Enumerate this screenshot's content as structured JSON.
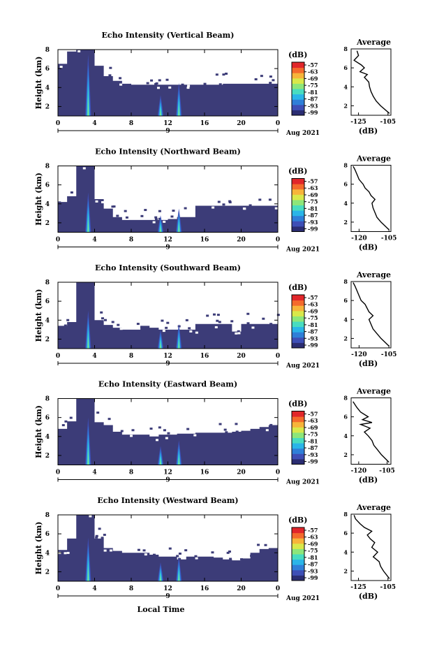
{
  "colors": {
    "background": "#3c3c78",
    "colorbar": [
      "#2b2d72",
      "#3e4fb6",
      "#2f7fd8",
      "#2ab5e8",
      "#48dcc0",
      "#8de67a",
      "#d9e84a",
      "#f7b43a",
      "#f46a2c",
      "#e1262a"
    ]
  },
  "shared": {
    "ylabel": "Height (km)",
    "avg_xlabel": "(dB)",
    "cb_unit": "(dB)",
    "cb_ticks": [
      "-57",
      "-63",
      "-69",
      "-75",
      "-81",
      "-87",
      "-93",
      "-99"
    ],
    "x_ticks": [
      "0",
      "4",
      "8",
      "12",
      "16",
      "20",
      "0"
    ],
    "day_label": "9",
    "month_label": "Aug 2021",
    "y_ticks": [
      "8",
      "6",
      "4",
      "2"
    ],
    "xlabel": "Local Time",
    "avg_title": "Average"
  },
  "chart_data": [
    {
      "type": "heatmap",
      "title": "Echo Intensity (Vertical Beam)",
      "beam": "vertical",
      "xlabel": "",
      "ylabel": "Height (km)",
      "xlim": [
        0,
        24
      ],
      "ylim": [
        1,
        8
      ],
      "echo_top_km": [
        6.5,
        7.8,
        8,
        8,
        6.3,
        5.2,
        4.7,
        4.4,
        4.3,
        4.3,
        4.3,
        4.3,
        4.3,
        4.3,
        4.3,
        4.3,
        4.3,
        4.3,
        4.4,
        4.4,
        4.4,
        4.4,
        4.4,
        4.4
      ],
      "peaks": [
        {
          "x": 3.3,
          "top": 7.5
        },
        {
          "x": 11.2,
          "top": 3.2
        },
        {
          "x": 13.2,
          "top": 4.5
        }
      ],
      "colorbar": {
        "label": "(dB)",
        "ticks": [
          -57,
          -63,
          -69,
          -75,
          -81,
          -87,
          -93,
          -99
        ]
      },
      "avg": {
        "title": "Average",
        "xlabel": "(dB)",
        "xticks": [
          -125,
          -105
        ],
        "xlim": [
          -130,
          -103
        ],
        "ylim": [
          1,
          8
        ],
        "points": [
          [
            -104,
            1.2
          ],
          [
            -110,
            2.0
          ],
          [
            -113,
            2.5
          ],
          [
            -115,
            3.0
          ],
          [
            -116.5,
            3.5
          ],
          [
            -117.5,
            4.0
          ],
          [
            -118,
            4.5
          ],
          [
            -121,
            5.0
          ],
          [
            -119,
            5.3
          ],
          [
            -124,
            5.6
          ],
          [
            -121,
            6.0
          ],
          [
            -123,
            6.3
          ],
          [
            -128,
            6.8
          ],
          [
            -125,
            7.3
          ],
          [
            -126,
            7.8
          ]
        ]
      }
    },
    {
      "type": "heatmap",
      "title": "Echo Intensity (Northward Beam)",
      "beam": "northward",
      "xlabel": "",
      "ylabel": "Height (km)",
      "xlim": [
        0,
        24
      ],
      "ylim": [
        1,
        8
      ],
      "echo_top_km": [
        4.2,
        4.8,
        8,
        8,
        4.5,
        3.5,
        2.6,
        2.3,
        2.3,
        2.3,
        2.3,
        2.3,
        2.4,
        2.6,
        2.6,
        3.8,
        3.8,
        3.8,
        3.8,
        3.8,
        3.8,
        3.8,
        3.8,
        3.8
      ],
      "peaks": [
        {
          "x": 3.3,
          "top": 5.2
        },
        {
          "x": 11.2,
          "top": 2.8
        },
        {
          "x": 13.2,
          "top": 3.5
        }
      ],
      "colorbar": {
        "label": "(dB)",
        "ticks": [
          -57,
          -63,
          -69,
          -75,
          -81,
          -87,
          -93,
          -99
        ]
      },
      "avg": {
        "title": "Average",
        "xlabel": "(dB)",
        "xticks": [
          -120,
          -105
        ],
        "xlim": [
          -124,
          -104
        ],
        "ylim": [
          1,
          8
        ],
        "points": [
          [
            -105,
            1.2
          ],
          [
            -109,
            2.0
          ],
          [
            -111,
            2.5
          ],
          [
            -112,
            3.0
          ],
          [
            -113,
            3.5
          ],
          [
            -113.5,
            4.0
          ],
          [
            -112,
            4.4
          ],
          [
            -114,
            4.8
          ],
          [
            -115,
            5.2
          ],
          [
            -117,
            5.6
          ],
          [
            -118,
            6.0
          ],
          [
            -120,
            6.5
          ],
          [
            -121,
            7.0
          ],
          [
            -122,
            7.5
          ],
          [
            -123,
            7.9
          ]
        ]
      }
    },
    {
      "type": "heatmap",
      "title": "Echo Intensity (Southward Beam)",
      "beam": "southward",
      "xlabel": "",
      "ylabel": "Height (km)",
      "xlim": [
        0,
        24
      ],
      "ylim": [
        1,
        8
      ],
      "echo_top_km": [
        3.4,
        3.8,
        8,
        8,
        4.0,
        3.5,
        3.2,
        3.0,
        3.0,
        3.4,
        3.2,
        3.0,
        3.0,
        3.0,
        3.0,
        3.6,
        3.6,
        3.6,
        3.6,
        2.8,
        3.6,
        3.6,
        3.6,
        3.6
      ],
      "peaks": [
        {
          "x": 3.3,
          "top": 5.0
        },
        {
          "x": 11.2,
          "top": 3.0
        },
        {
          "x": 13.2,
          "top": 3.6
        }
      ],
      "colorbar": {
        "label": "(dB)",
        "ticks": [
          -57,
          -63,
          -69,
          -75,
          -81,
          -87,
          -93,
          -99
        ]
      },
      "avg": {
        "title": "Average",
        "xlabel": "(dB)",
        "xticks": [
          -120,
          -105
        ],
        "xlim": [
          -124,
          -104
        ],
        "ylim": [
          1,
          8
        ],
        "points": [
          [
            -105,
            1.2
          ],
          [
            -109,
            2.0
          ],
          [
            -111,
            2.5
          ],
          [
            -113,
            3.0
          ],
          [
            -114,
            3.5
          ],
          [
            -115,
            4.0
          ],
          [
            -113,
            4.4
          ],
          [
            -115,
            4.8
          ],
          [
            -116,
            5.2
          ],
          [
            -117,
            5.6
          ],
          [
            -119,
            6.0
          ],
          [
            -120,
            6.5
          ],
          [
            -121,
            7.0
          ],
          [
            -122,
            7.5
          ],
          [
            -123,
            7.9
          ]
        ]
      }
    },
    {
      "type": "heatmap",
      "title": "Echo Intensity (Eastward Beam)",
      "beam": "eastward",
      "xlabel": "",
      "ylabel": "Height (km)",
      "xlim": [
        0,
        24
      ],
      "ylim": [
        1,
        8
      ],
      "echo_top_km": [
        4.8,
        5.6,
        8,
        8,
        5.5,
        5.2,
        4.5,
        4.2,
        4.2,
        4.2,
        4.0,
        4.2,
        4.2,
        4.3,
        4.3,
        4.4,
        4.4,
        4.4,
        4.4,
        4.5,
        4.6,
        4.8,
        5.0,
        5.2
      ],
      "peaks": [
        {
          "x": 3.3,
          "top": 6.0
        },
        {
          "x": 11.2,
          "top": 3.0
        },
        {
          "x": 13.2,
          "top": 3.6
        }
      ],
      "colorbar": {
        "label": "(dB)",
        "ticks": [
          -57,
          -63,
          -69,
          -75,
          -81,
          -87,
          -93,
          -99
        ]
      },
      "avg": {
        "title": "Average",
        "xlabel": "(dB)",
        "xticks": [
          -120,
          -105
        ],
        "xlim": [
          -124,
          -103
        ],
        "ylim": [
          1,
          8
        ],
        "points": [
          [
            -104,
            1.2
          ],
          [
            -108,
            2.0
          ],
          [
            -110,
            2.5
          ],
          [
            -112,
            3.0
          ],
          [
            -113,
            3.5
          ],
          [
            -115,
            4.0
          ],
          [
            -117,
            4.4
          ],
          [
            -114,
            4.8
          ],
          [
            -119,
            5.2
          ],
          [
            -113,
            5.4
          ],
          [
            -118,
            5.7
          ],
          [
            -115,
            6.0
          ],
          [
            -119,
            6.5
          ],
          [
            -121,
            7.0
          ],
          [
            -123,
            7.6
          ]
        ]
      }
    },
    {
      "type": "heatmap",
      "title": "Echo Intensity (Westward Beam)",
      "beam": "westward",
      "xlabel": "Local Time",
      "ylabel": "Height (km)",
      "xlim": [
        0,
        24
      ],
      "ylim": [
        1,
        8
      ],
      "echo_top_km": [
        4.3,
        5.5,
        8,
        8,
        5.5,
        4.5,
        4.2,
        4.0,
        4.0,
        4.0,
        3.8,
        3.6,
        3.6,
        3.3,
        3.6,
        3.6,
        3.6,
        3.5,
        3.3,
        3.2,
        3.4,
        4.0,
        4.4,
        4.5
      ],
      "peaks": [
        {
          "x": 3.3,
          "top": 5.6
        },
        {
          "x": 11.2,
          "top": 3.0
        },
        {
          "x": 13.2,
          "top": 3.6
        }
      ],
      "colorbar": {
        "label": "(dB)",
        "ticks": [
          -57,
          -63,
          -69,
          -75,
          -81,
          -87,
          -93,
          -99
        ]
      },
      "avg": {
        "title": "Average",
        "xlabel": "(dB)",
        "xticks": [
          -125,
          -105
        ],
        "xlim": [
          -130,
          -103
        ],
        "ylim": [
          1,
          8
        ],
        "points": [
          [
            -104,
            1.2
          ],
          [
            -108,
            2.0
          ],
          [
            -110,
            2.5
          ],
          [
            -111,
            3.0
          ],
          [
            -115,
            3.5
          ],
          [
            -112,
            4.0
          ],
          [
            -116,
            4.5
          ],
          [
            -114,
            5.0
          ],
          [
            -117,
            5.4
          ],
          [
            -119,
            5.8
          ],
          [
            -116,
            6.2
          ],
          [
            -121,
            6.6
          ],
          [
            -124,
            7.0
          ],
          [
            -127,
            7.5
          ],
          [
            -128,
            7.9
          ]
        ]
      }
    }
  ]
}
